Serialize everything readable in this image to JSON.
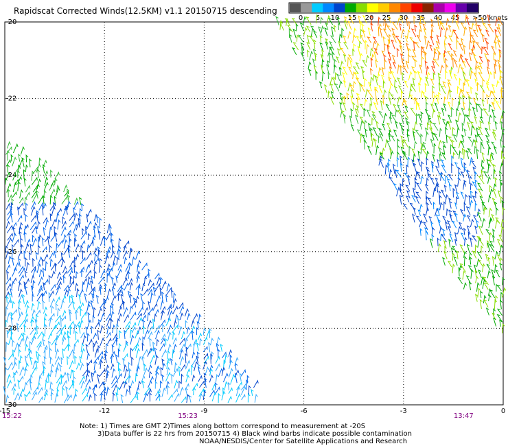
{
  "title": "Rapidscat Corrected Winds(12.5KM) v1.1 20150715 descending",
  "legend": {
    "labels": [
      "0",
      "5",
      "10",
      "15",
      "20",
      "25",
      "30",
      "35",
      "40",
      "45",
      ">50 knots"
    ],
    "colors": [
      "#555555",
      "#999999",
      "#00ccff",
      "#0088ff",
      "#0044cc",
      "#00aa00",
      "#88dd00",
      "#ffff00",
      "#ffcc00",
      "#ff8800",
      "#ff4400",
      "#ee0000",
      "#882200",
      "#aa00aa",
      "#ee00ee",
      "#6600aa",
      "#220066"
    ]
  },
  "map": {
    "lat_labels": [
      "-20",
      "-22",
      "-24",
      "-26",
      "-28",
      "-30"
    ],
    "lon_labels": [
      "-15",
      "-12",
      "-9",
      "-6",
      "-3",
      "0"
    ],
    "lat_range": [
      -30,
      -20
    ],
    "lon_range": [
      -15,
      0
    ],
    "grid": true,
    "time_labels": [
      {
        "text": "15:22",
        "lon": -15
      },
      {
        "text": "15:23",
        "lon": -9.5
      },
      {
        "text": "13:47",
        "lon": -1.2
      }
    ]
  },
  "notes": {
    "line1": "Note: 1) Times are GMT 2)Times along bottom correspond to measurement at -20S",
    "line2": "3)Data buffer is 22 hrs from 20150715 4) Black wind barbs indicate possible contamination",
    "line3": "NOAA/NESDIS/Center for Satellite Applications and Research"
  }
}
